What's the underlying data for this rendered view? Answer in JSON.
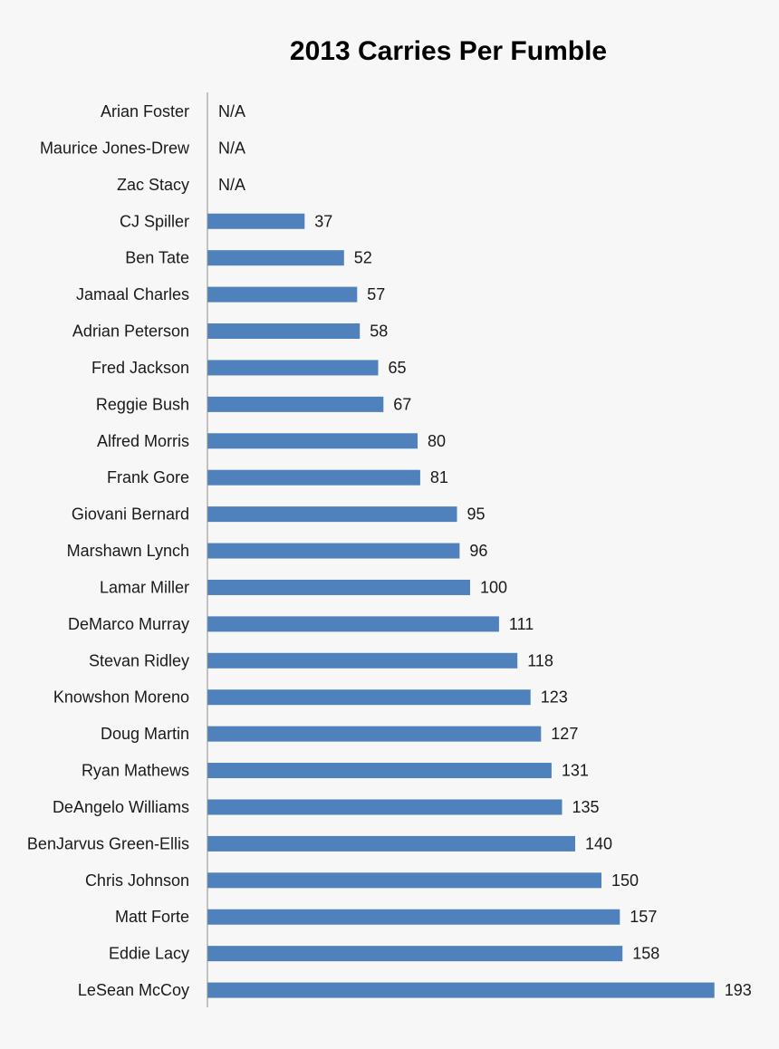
{
  "chart_data": {
    "type": "bar",
    "orientation": "horizontal",
    "title": "2013 Carries Per Fumble",
    "xlabel": "",
    "ylabel": "",
    "grid": false,
    "legend": "none",
    "xlim": [
      0,
      200
    ],
    "bar_color": "#4f81bd",
    "categories": [
      "Arian Foster",
      "Maurice Jones-Drew",
      "Zac Stacy",
      "CJ Spiller",
      "Ben Tate",
      "Jamaal Charles",
      "Adrian Peterson",
      "Fred Jackson",
      "Reggie Bush",
      "Alfred Morris",
      "Frank Gore",
      "Giovani Bernard",
      "Marshawn Lynch",
      "Lamar Miller",
      "DeMarco Murray",
      "Stevan Ridley",
      "Knowshon Moreno",
      "Doug Martin",
      "Ryan Mathews",
      "DeAngelo Williams",
      "BenJarvus Green-Ellis",
      "Chris Johnson",
      "Matt Forte",
      "Eddie Lacy",
      "LeSean McCoy"
    ],
    "values": [
      null,
      null,
      null,
      37,
      52,
      57,
      58,
      65,
      67,
      80,
      81,
      95,
      96,
      100,
      111,
      118,
      123,
      127,
      131,
      135,
      140,
      150,
      157,
      158,
      193
    ],
    "data_labels": [
      "N/A",
      "N/A",
      "N/A",
      "37",
      "52",
      "57",
      "58",
      "65",
      "67",
      "80",
      "81",
      "95",
      "96",
      "100",
      "111",
      "118",
      "123",
      "127",
      "131",
      "135",
      "140",
      "150",
      "157",
      "158",
      "193"
    ]
  }
}
